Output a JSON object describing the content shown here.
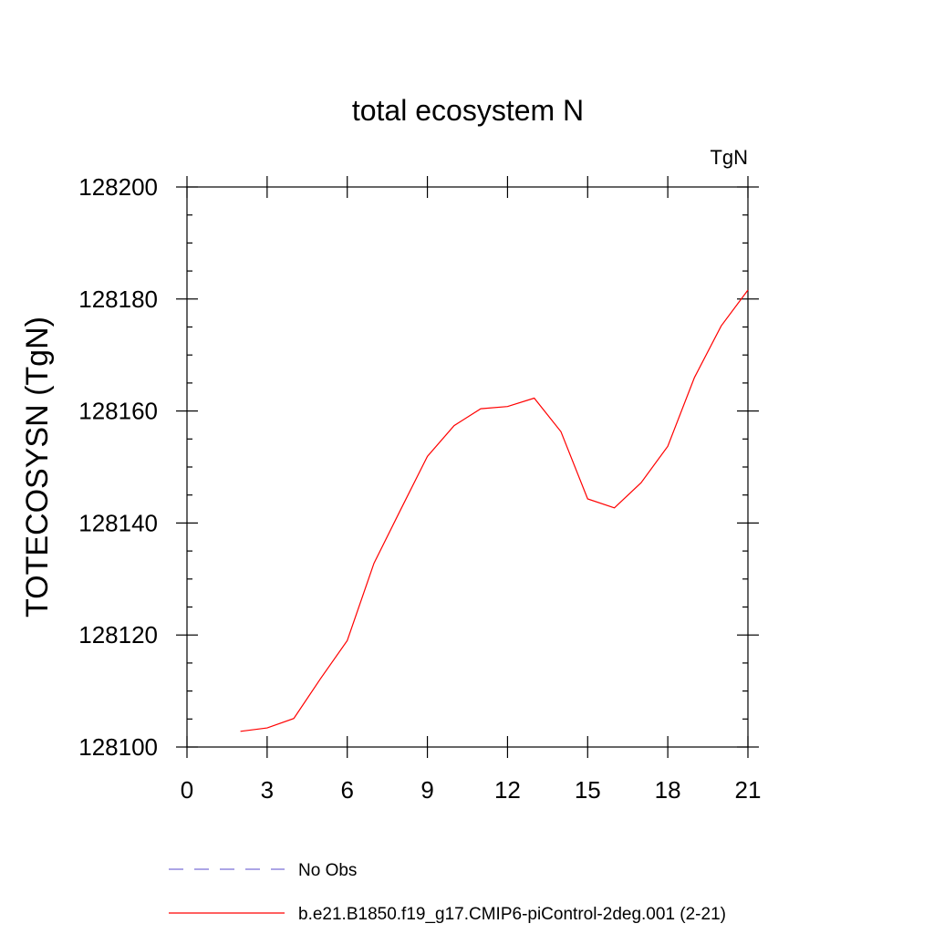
{
  "chart_data": {
    "type": "line",
    "title": "total ecosystem N",
    "units_label": "TgN",
    "xlabel": "",
    "ylabel": "TOTECOSYSN  (TgN)",
    "xlim": [
      0,
      21
    ],
    "ylim": [
      128100,
      128200
    ],
    "xticks": [
      0,
      3,
      6,
      9,
      12,
      15,
      18,
      21
    ],
    "yticks": [
      128100,
      128120,
      128140,
      128160,
      128180,
      128200
    ],
    "grid": false,
    "series": [
      {
        "name": "b.e21.B1850.f19_g17.CMIP6-piControl-2deg.001 (2-21)",
        "color": "#ff0000",
        "style": "solid",
        "x": [
          2,
          3,
          4,
          5,
          6,
          7,
          8,
          9,
          10,
          11,
          12,
          13,
          14,
          15,
          16,
          17,
          18,
          19,
          20,
          21
        ],
        "y": [
          128102.8,
          128103.4,
          128105.1,
          128112.2,
          128119.0,
          128132.8,
          128142.4,
          128151.9,
          128157.4,
          128160.4,
          128160.8,
          128162.3,
          128156.3,
          128144.3,
          128142.7,
          128147.2,
          128153.7,
          128166.0,
          128175.2,
          128181.6
        ]
      }
    ],
    "legend": [
      {
        "label": "No Obs",
        "color": "#7b6fd6",
        "style": "dashed"
      },
      {
        "label": "b.e21.B1850.f19_g17.CMIP6-piControl-2deg.001 (2-21)",
        "color": "#ff0000",
        "style": "solid"
      }
    ]
  }
}
